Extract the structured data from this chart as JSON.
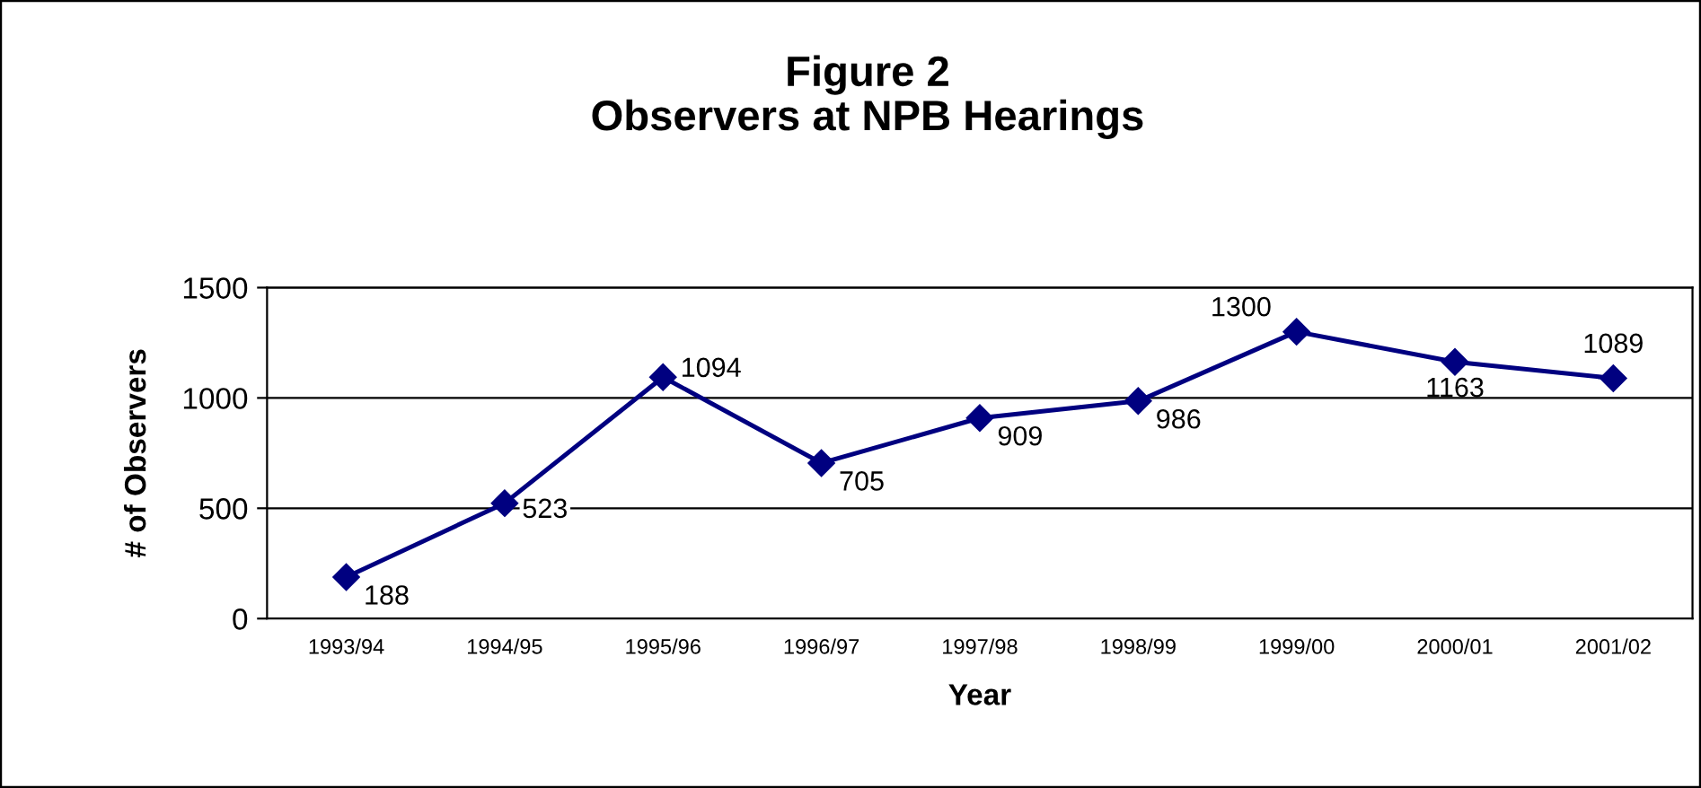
{
  "chart_data": {
    "type": "line",
    "title": "Figure 2\nObservers at NPB Hearings",
    "xlabel": "Year",
    "ylabel": "# of Observers",
    "categories": [
      "1993/94",
      "1994/95",
      "1995/96",
      "1996/97",
      "1997/98",
      "1998/99",
      "1999/00",
      "2000/01",
      "2001/02"
    ],
    "series": [
      {
        "color": "#000080",
        "values": [
          188,
          523,
          1094,
          705,
          909,
          986,
          1300,
          1163,
          1089
        ]
      }
    ],
    "ylim": [
      0,
      1500
    ],
    "yticks": [
      0,
      500,
      1000,
      1500
    ],
    "grid": "y",
    "marker": "diamond",
    "line_style": "solid",
    "data_labels": true
  }
}
